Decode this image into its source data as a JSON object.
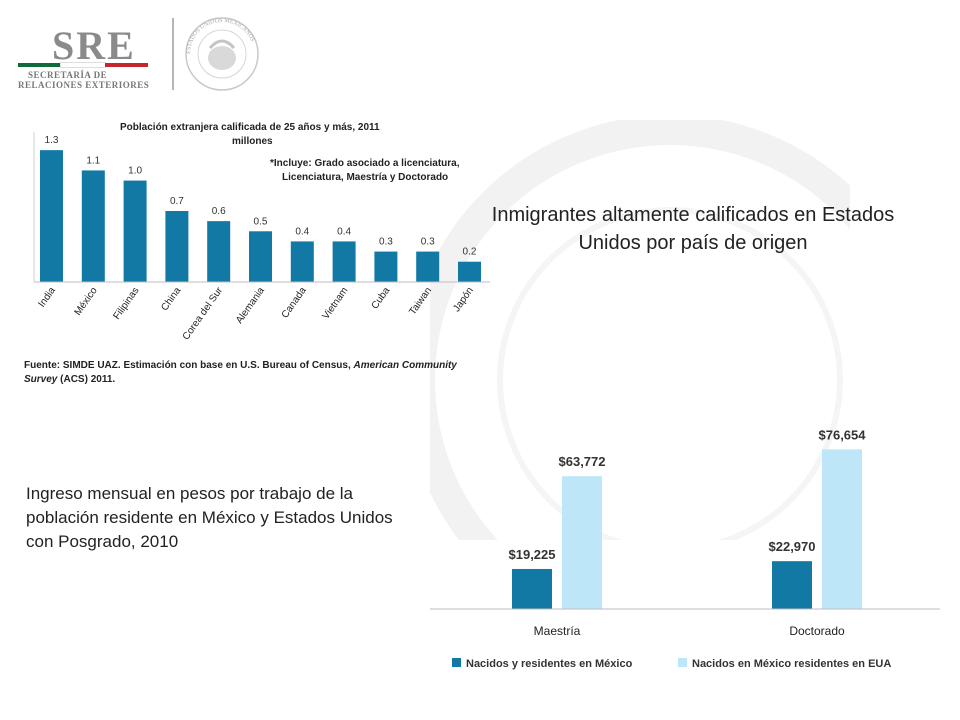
{
  "header": {
    "logo_text": "SRE",
    "logo_line1": "SECRETARÍA DE",
    "logo_line2": "RELACIONES EXTERIORES",
    "seal_text": "ESTADOS UNIDOS MEXICANOS",
    "flag_colors": [
      "#0f6b3a",
      "#ffffff",
      "#c4262e"
    ]
  },
  "titles": {
    "main": "Inmigrantes altamente calificados en Estados Unidos por país de origen",
    "income": "Ingreso mensual en pesos por trabajo de la población residente en México y Estados Unidos con Posgrado, 2010"
  },
  "colors": {
    "bar_primary": "#1279a5",
    "bar_secondary": "#bde7f8",
    "axis": "#bdbdbd"
  },
  "chart_data": [
    {
      "type": "bar",
      "title": "Población extranjera calificada de 25 años y más, 2011",
      "subtitle": "millones",
      "note_mark": "*",
      "note_line1": "Incluye: Grado asociado a licenciatura,",
      "note_line2": "Licenciatura, Maestría y Doctorado",
      "categories": [
        "India",
        "México",
        "Filipinas",
        "China",
        "Corea del Sur",
        "Alemania",
        "Canada",
        "Vietnam",
        "Cuba",
        "Taiwan",
        "Japón"
      ],
      "values": [
        1.3,
        1.1,
        1.0,
        0.7,
        0.6,
        0.5,
        0.4,
        0.4,
        0.3,
        0.3,
        0.2
      ],
      "value_labels": [
        "1.3",
        "1.1",
        "1.0",
        "0.7",
        "0.6",
        "0.5",
        "0.4",
        "0.4",
        "0.3",
        "0.3",
        "0.2"
      ],
      "ylim": [
        0,
        1.4
      ],
      "source_line1_prefix": "Fuente: SIMDE UAZ. Estimación con base en U.S. Bureau of Census,",
      "source_line1_italic": "American Community",
      "source_line2_italic": "Survey",
      "source_line2_rest": "(ACS) 2011.",
      "grid": false
    },
    {
      "type": "bar",
      "categories": [
        "Maestría",
        "Doctorado"
      ],
      "series": [
        {
          "name": "Nacidos y residentes en México",
          "values": [
            19225,
            22970
          ],
          "labels": [
            "$19,225",
            "$22,970"
          ]
        },
        {
          "name": "Nacidos en México residentes en EUA",
          "values": [
            63772,
            76654
          ],
          "labels": [
            "$63,772",
            "$76,654"
          ]
        }
      ],
      "ylim": [
        0,
        85000
      ],
      "legend": "bottom",
      "grid": false
    }
  ]
}
